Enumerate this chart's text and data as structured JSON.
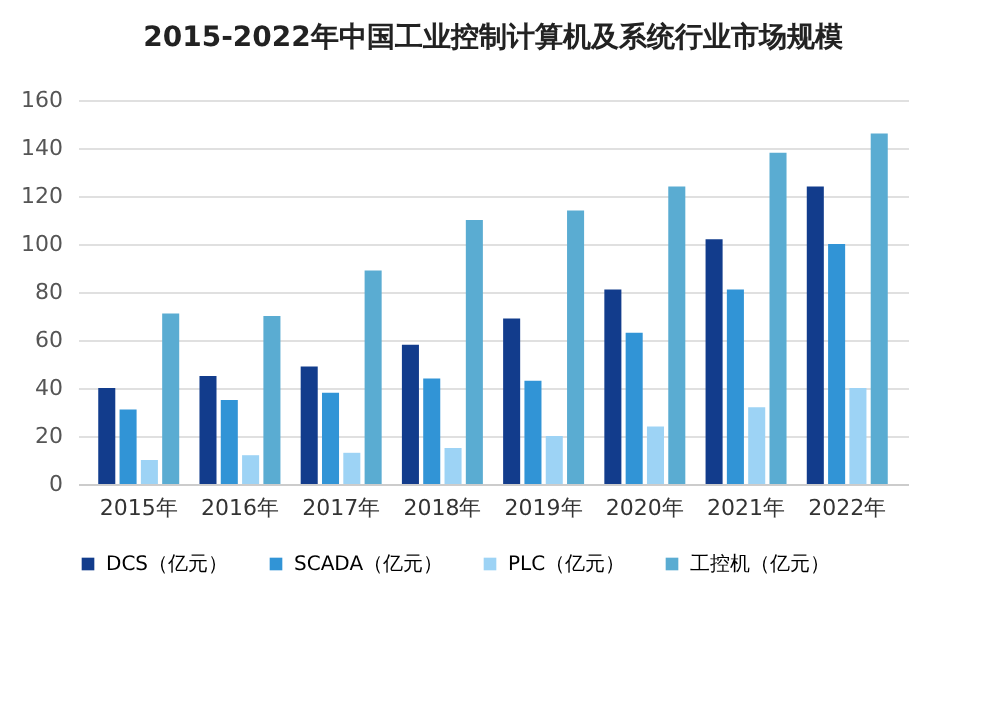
{
  "chart_data": {
    "type": "bar",
    "title": "2015-2022年中国工业控制计算机及系统行业市场规模",
    "categories": [
      "2015年",
      "2016年",
      "2017年",
      "2018年",
      "2019年",
      "2020年",
      "2021年",
      "2022年"
    ],
    "series": [
      {
        "name": "DCS（亿元）",
        "color": "#123c8c",
        "values": [
          40,
          45,
          49,
          58,
          69,
          81,
          102,
          124
        ]
      },
      {
        "name": "SCADA（亿元）",
        "color": "#3194d6",
        "values": [
          31,
          35,
          38,
          44,
          43,
          63,
          81,
          100
        ]
      },
      {
        "name": "PLC（亿元）",
        "color": "#9dd3f5",
        "values": [
          10,
          12,
          13,
          15,
          20,
          24,
          32,
          40
        ]
      },
      {
        "name": "工控机（亿元）",
        "color": "#5aacd2",
        "values": [
          71,
          70,
          89,
          110,
          114,
          124,
          138,
          146
        ]
      }
    ],
    "ylim": [
      0,
      160
    ],
    "yticks": [
      0,
      20,
      40,
      60,
      80,
      100,
      120,
      140,
      160
    ],
    "grid": "y",
    "legend": "bottom"
  }
}
